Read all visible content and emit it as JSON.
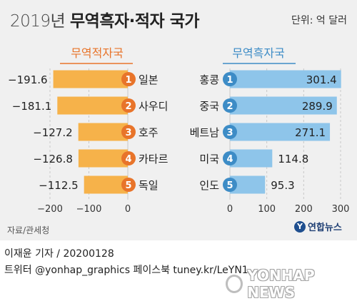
{
  "header": {
    "title_year": "2019년",
    "title_main": "무역흑자·적자 국가",
    "unit": "단위: 억 달러"
  },
  "chart_data": [
    {
      "type": "bar",
      "title": "무역적자국",
      "categories": [
        "일본",
        "사우디",
        "호주",
        "카타르",
        "독일"
      ],
      "ranks": [
        "1",
        "2",
        "3",
        "4",
        "5"
      ],
      "values": [
        -191.6,
        -181.1,
        -127.2,
        -126.8,
        -112.5
      ],
      "value_labels": [
        "−191.6",
        "−181.1",
        "−127.2",
        "−126.8",
        "−112.5"
      ],
      "xlim": [
        -200,
        0
      ],
      "ticks": [
        -200,
        -100,
        0
      ],
      "tick_labels": [
        "−200",
        "−100",
        "0"
      ],
      "bar_color": "#f6b24a",
      "header_color": "#e8742a"
    },
    {
      "type": "bar",
      "title": "무역흑자국",
      "categories": [
        "홍콩",
        "중국",
        "베트남",
        "미국",
        "인도"
      ],
      "ranks": [
        "1",
        "2",
        "3",
        "4",
        "5"
      ],
      "values": [
        301.4,
        289.9,
        271.1,
        114.8,
        95.3
      ],
      "value_labels": [
        "301.4",
        "289.9",
        "271.1",
        "114.8",
        "95.3"
      ],
      "xlim": [
        0,
        300
      ],
      "ticks": [
        0,
        100,
        200,
        300
      ],
      "tick_labels": [
        "0",
        "100",
        "200",
        "300"
      ],
      "bar_color": "#8ec5ea",
      "header_color": "#3d8cc6"
    }
  ],
  "footer": {
    "source": "자료/관세청",
    "logo_mark": "Y",
    "logo_text": "연합뉴스",
    "credit_line1": "이재윤 기자 / 20200128",
    "credit_line2": "트위터 @yonhap_graphics  페이스북 tuney.kr/LeYN1",
    "watermark": "YONHAP NEWS"
  }
}
